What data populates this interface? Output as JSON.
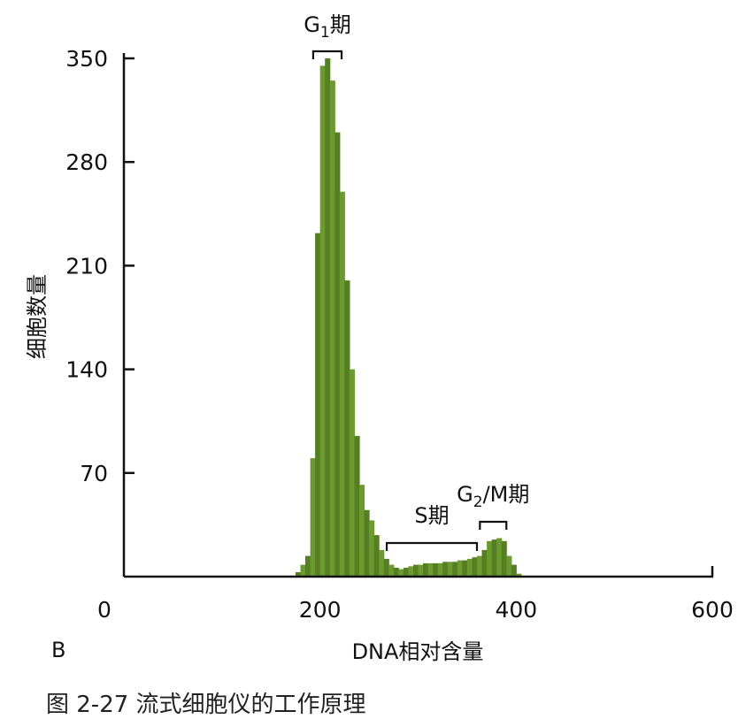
{
  "colors": {
    "bar": "#6b9a2e",
    "bar_dark": "#557f22",
    "axis": "#111111"
  },
  "panel_label": "B",
  "caption": "图 2-27  流式细胞仪的工作原理",
  "chart_data": {
    "type": "bar",
    "xlabel": "DNA相对含量",
    "ylabel": "细胞数量",
    "xlim": [
      0,
      600
    ],
    "ylim": [
      0,
      350
    ],
    "x_ticks": [
      0,
      200,
      400,
      600
    ],
    "y_ticks": [
      70,
      140,
      210,
      280,
      350
    ],
    "bin_width": 5,
    "x": [
      170,
      175,
      180,
      185,
      190,
      195,
      200,
      205,
      210,
      215,
      220,
      225,
      230,
      235,
      240,
      245,
      250,
      255,
      260,
      265,
      270,
      275,
      280,
      285,
      290,
      295,
      300,
      305,
      310,
      315,
      320,
      325,
      330,
      335,
      340,
      345,
      350,
      355,
      360,
      365,
      370,
      375,
      380,
      385,
      390,
      395,
      400,
      405,
      410
    ],
    "values": [
      0,
      3,
      8,
      14,
      80,
      232,
      345,
      350,
      335,
      300,
      260,
      200,
      140,
      95,
      62,
      45,
      38,
      28,
      18,
      12,
      8,
      6,
      5,
      6,
      7,
      8,
      8,
      9,
      9,
      9,
      9,
      10,
      10,
      10,
      11,
      11,
      12,
      13,
      14,
      18,
      24,
      25,
      26,
      24,
      14,
      8,
      2,
      0,
      0
    ],
    "annotations": [
      {
        "label_main": "G",
        "label_sub": "1",
        "label_tail": "期",
        "range": [
          193,
          222
        ]
      },
      {
        "label_main": "S期",
        "label_sub": "",
        "label_tail": "",
        "range": [
          268,
          360
        ]
      },
      {
        "label_main": "G",
        "label_sub": "2",
        "label_tail": "/M期",
        "range": [
          363,
          390
        ]
      }
    ]
  }
}
